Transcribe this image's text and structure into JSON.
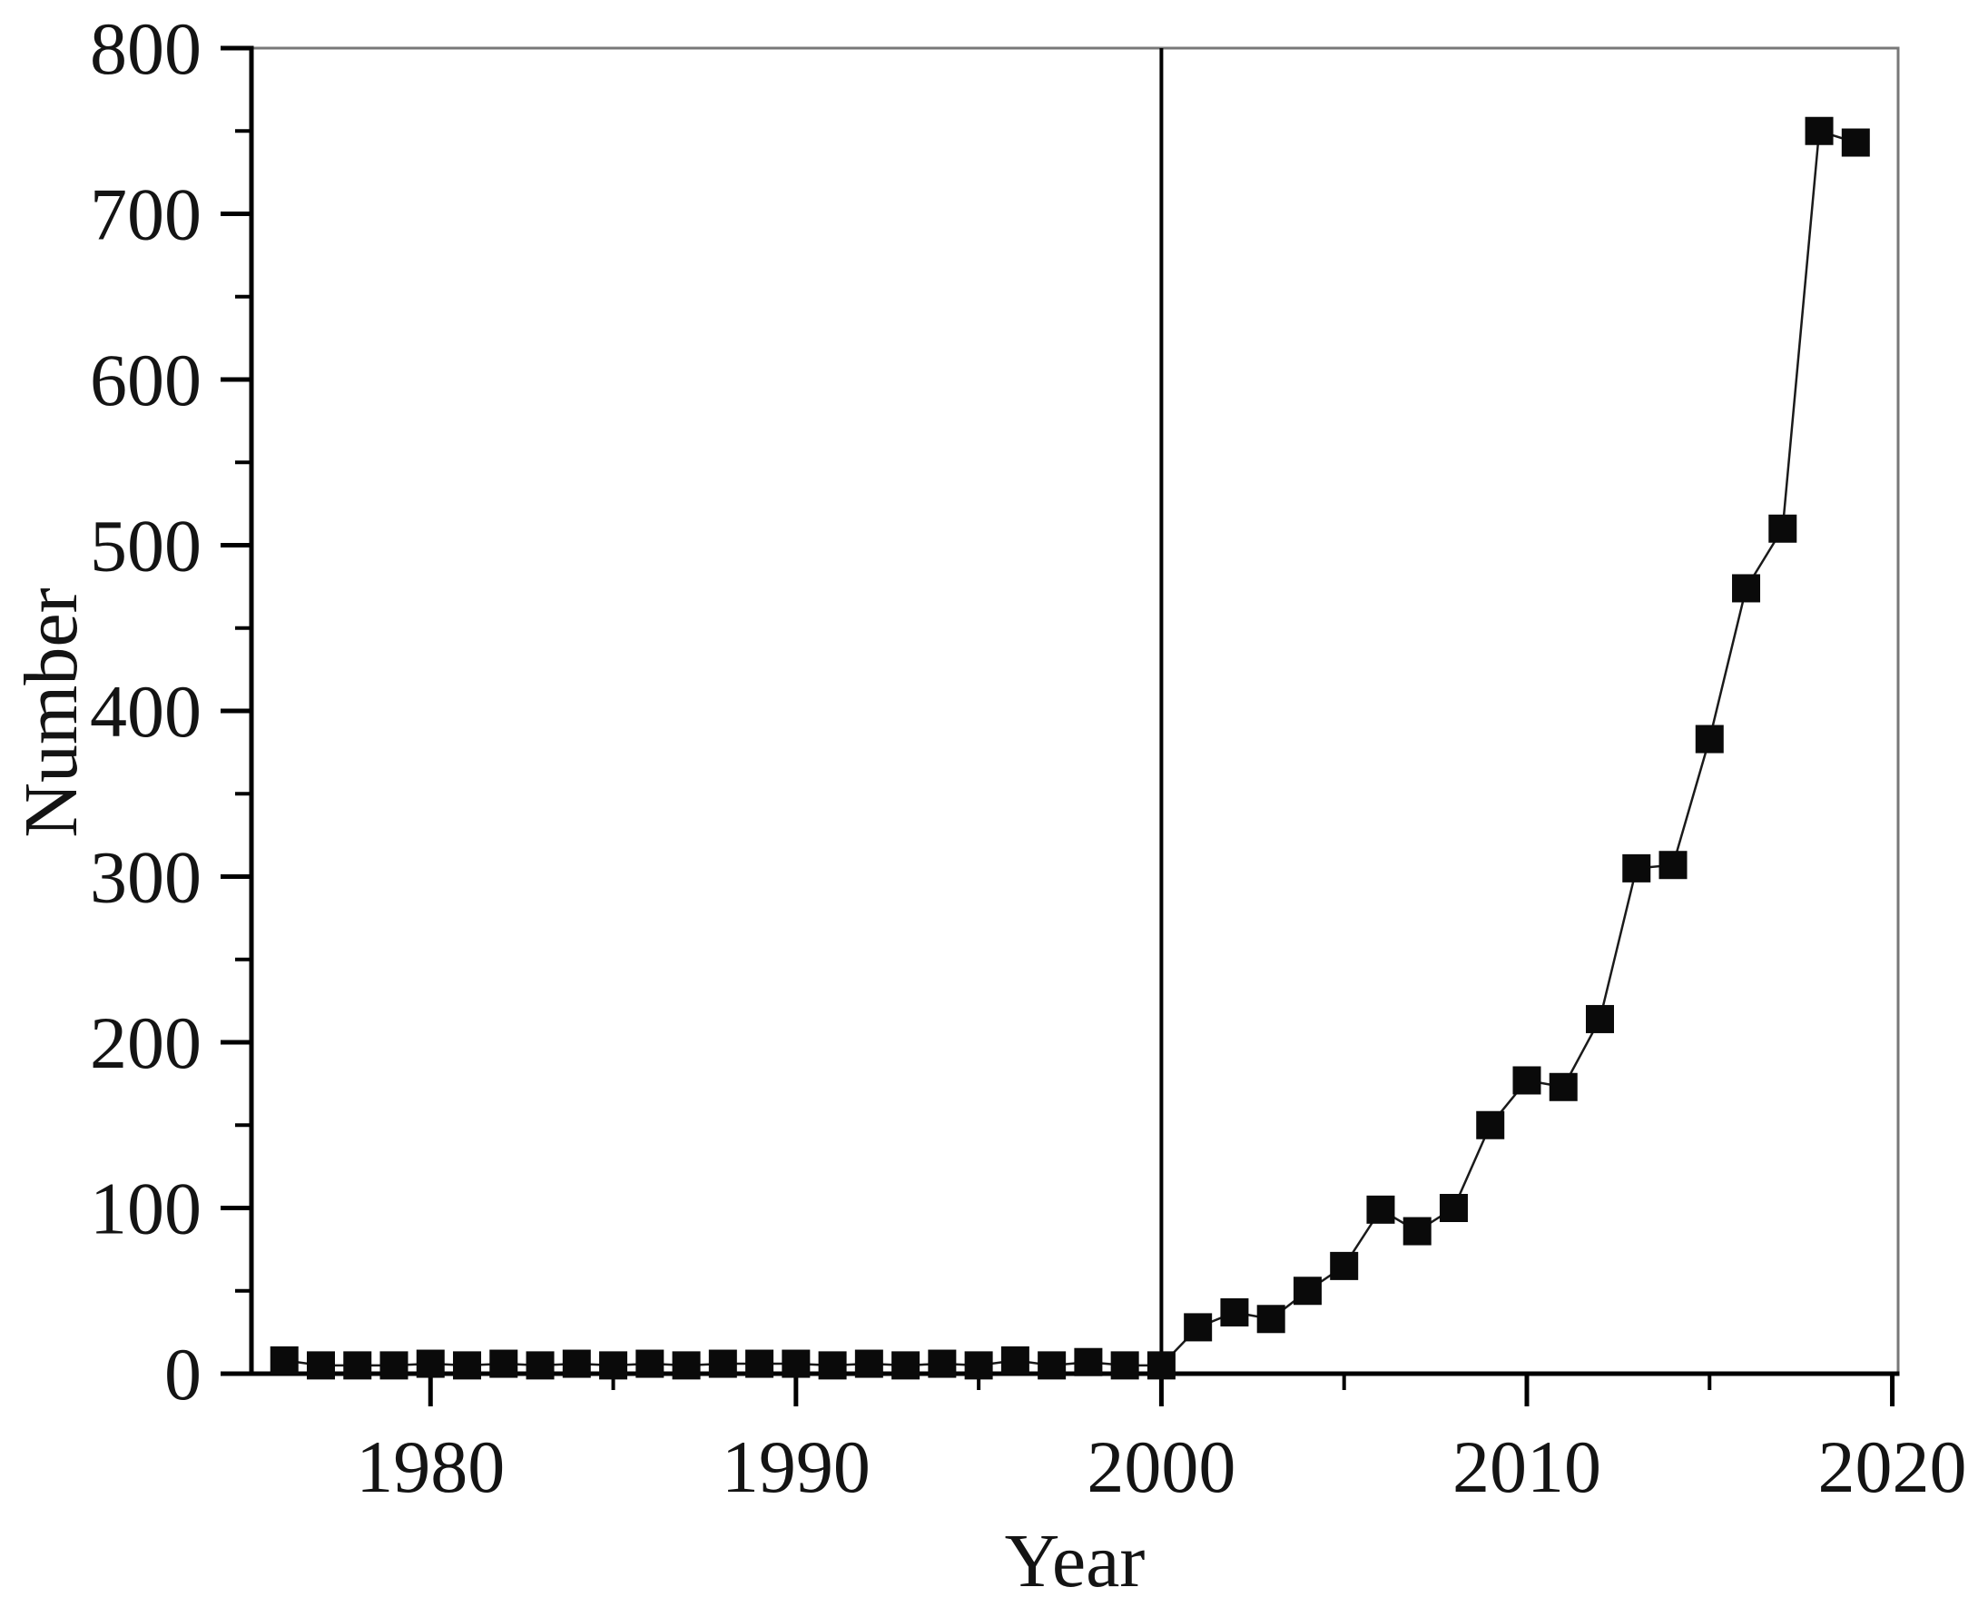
{
  "figure": {
    "background_color": "#ffffff",
    "axis_color": "#000000",
    "frame_secondary_color": "#787878",
    "marker_color": "#0a0a0a",
    "line_color": "#1a1a1a",
    "reference_line_color": "#000000"
  },
  "chart_data": {
    "type": "scatter",
    "title": "",
    "xlabel": "Year",
    "ylabel": "Number",
    "xlim": [
      1975.1,
      2020.16
    ],
    "ylim": [
      0,
      800
    ],
    "grid": false,
    "legend": null,
    "marker_shape": "square",
    "reference_line_x": 2000,
    "x_major_ticks": [
      1980,
      1990,
      2000,
      2010,
      2020
    ],
    "x_major_tick_labels": [
      "1980",
      "1990",
      "2000",
      "2010",
      "2020"
    ],
    "x_minor_ticks": [
      1985,
      1995,
      2005,
      2015
    ],
    "y_major_ticks": [
      0,
      100,
      200,
      300,
      400,
      500,
      600,
      700,
      800
    ],
    "y_major_tick_labels": [
      "0",
      "100",
      "200",
      "300",
      "400",
      "500",
      "600",
      "700",
      "800"
    ],
    "y_minor_ticks": [
      50,
      150,
      250,
      350,
      450,
      550,
      650,
      750
    ],
    "x": [
      1976,
      1977,
      1978,
      1979,
      1980,
      1981,
      1982,
      1983,
      1984,
      1985,
      1986,
      1987,
      1988,
      1989,
      1990,
      1991,
      1992,
      1993,
      1994,
      1995,
      1996,
      1997,
      1998,
      1999,
      2000,
      2001,
      2002,
      2003,
      2004,
      2005,
      2006,
      2007,
      2008,
      2009,
      2010,
      2011,
      2012,
      2013,
      2014,
      2015,
      2016,
      2017,
      2018,
      2019
    ],
    "y": [
      8,
      5,
      5,
      5,
      6,
      5,
      6,
      5,
      6,
      5,
      6,
      5,
      6,
      6,
      6,
      5,
      6,
      5,
      6,
      5,
      8,
      5,
      7,
      5,
      5,
      28,
      37,
      33,
      50,
      65,
      99,
      86,
      100,
      150,
      177,
      173,
      214,
      305,
      307,
      383,
      474,
      510,
      750,
      743
    ]
  }
}
